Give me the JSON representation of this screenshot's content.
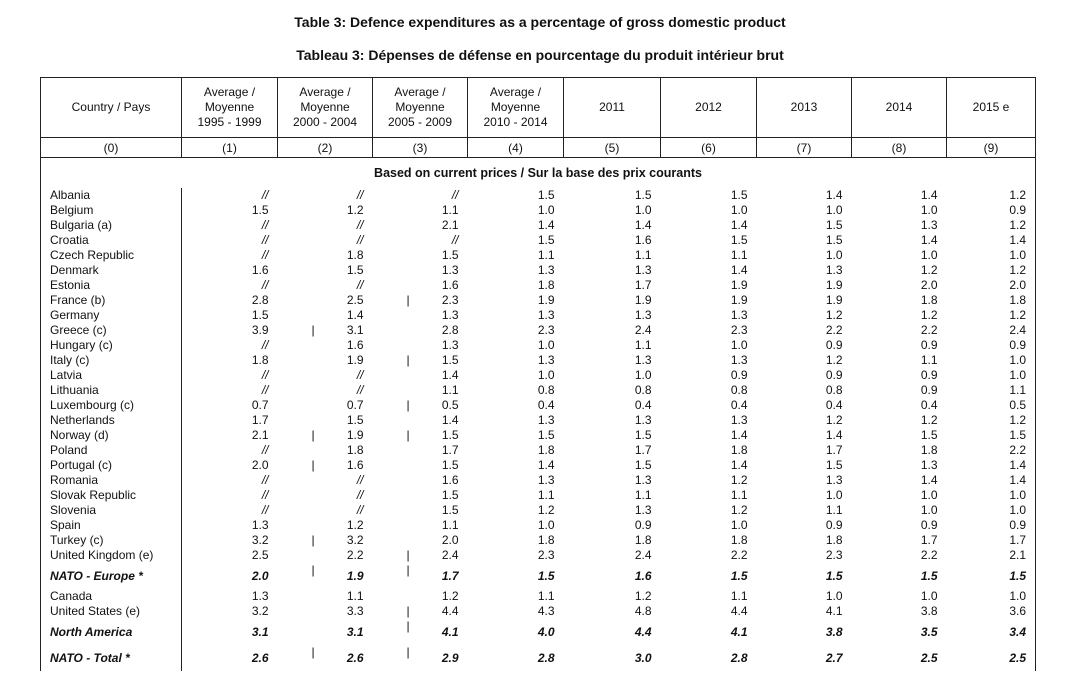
{
  "titles": {
    "en": "Table 3: Defence expenditures as a percentage of gross domestic product",
    "fr": "Tableau 3: Dépenses de défense en pourcentage du produit intérieur brut"
  },
  "columns": [
    {
      "lines": [
        "Country  /  Pays"
      ],
      "index": "(0)"
    },
    {
      "lines": [
        "Average  /",
        "Moyenne",
        "1995 - 1999"
      ],
      "index": "(1)"
    },
    {
      "lines": [
        "Average  /",
        "Moyenne",
        "2000 - 2004"
      ],
      "index": "(2)"
    },
    {
      "lines": [
        "Average  /",
        "Moyenne",
        "2005 - 2009"
      ],
      "index": "(3)"
    },
    {
      "lines": [
        "Average  /",
        "Moyenne",
        "2010 - 2014"
      ],
      "index": "(4)"
    },
    {
      "lines": [
        "2011"
      ],
      "index": "(5)"
    },
    {
      "lines": [
        "2012"
      ],
      "index": "(6)"
    },
    {
      "lines": [
        "2013"
      ],
      "index": "(7)"
    },
    {
      "lines": [
        "2014"
      ],
      "index": "(8)"
    },
    {
      "lines": [
        "2015 e"
      ],
      "index": "(9)"
    }
  ],
  "section_label": "Based on current prices   /   Sur  la base des prix courants",
  "break_marker": "|",
  "rows": [
    {
      "country": "Albania",
      "values": [
        "//",
        "//",
        "//",
        "1.5",
        "1.5",
        "1.5",
        "1.4",
        "1.4",
        "1.2"
      ],
      "breaks": [
        false,
        false
      ]
    },
    {
      "country": "Belgium",
      "values": [
        "1.5",
        "1.2",
        "1.1",
        "1.0",
        "1.0",
        "1.0",
        "1.0",
        "1.0",
        "0.9"
      ],
      "breaks": [
        false,
        false
      ]
    },
    {
      "country": "Bulgaria (a)",
      "values": [
        "//",
        "//",
        "2.1",
        "1.4",
        "1.4",
        "1.4",
        "1.5",
        "1.3",
        "1.2"
      ],
      "breaks": [
        false,
        false
      ]
    },
    {
      "country": "Croatia",
      "values": [
        "//",
        "//",
        "//",
        "1.5",
        "1.6",
        "1.5",
        "1.5",
        "1.4",
        "1.4"
      ],
      "breaks": [
        false,
        false
      ]
    },
    {
      "country": "Czech Republic",
      "values": [
        "//",
        "1.8",
        "1.5",
        "1.1",
        "1.1",
        "1.1",
        "1.0",
        "1.0",
        "1.0"
      ],
      "breaks": [
        false,
        false
      ]
    },
    {
      "country": "Denmark",
      "values": [
        "1.6",
        "1.5",
        "1.3",
        "1.3",
        "1.3",
        "1.4",
        "1.3",
        "1.2",
        "1.2"
      ],
      "breaks": [
        false,
        false
      ]
    },
    {
      "country": "Estonia",
      "values": [
        "//",
        "//",
        "1.6",
        "1.8",
        "1.7",
        "1.9",
        "1.9",
        "2.0",
        "2.0"
      ],
      "breaks": [
        false,
        false
      ]
    },
    {
      "country": "France (b)",
      "values": [
        "2.8",
        "2.5",
        "2.3",
        "1.9",
        "1.9",
        "1.9",
        "1.9",
        "1.8",
        "1.8"
      ],
      "breaks": [
        false,
        true
      ]
    },
    {
      "country": "Germany",
      "values": [
        "1.5",
        "1.4",
        "1.3",
        "1.3",
        "1.3",
        "1.3",
        "1.2",
        "1.2",
        "1.2"
      ],
      "breaks": [
        false,
        false
      ]
    },
    {
      "country": "Greece (c)",
      "values": [
        "3.9",
        "3.1",
        "2.8",
        "2.3",
        "2.4",
        "2.3",
        "2.2",
        "2.2",
        "2.4"
      ],
      "breaks": [
        true,
        false
      ]
    },
    {
      "country": "Hungary (c)",
      "values": [
        "//",
        "1.6",
        "1.3",
        "1.0",
        "1.1",
        "1.0",
        "0.9",
        "0.9",
        "0.9"
      ],
      "breaks": [
        false,
        false
      ]
    },
    {
      "country": "Italy (c)",
      "values": [
        "1.8",
        "1.9",
        "1.5",
        "1.3",
        "1.3",
        "1.3",
        "1.2",
        "1.1",
        "1.0"
      ],
      "breaks": [
        false,
        true
      ]
    },
    {
      "country": "Latvia",
      "values": [
        "//",
        "//",
        "1.4",
        "1.0",
        "1.0",
        "0.9",
        "0.9",
        "0.9",
        "1.0"
      ],
      "breaks": [
        false,
        false
      ]
    },
    {
      "country": "Lithuania",
      "values": [
        "//",
        "//",
        "1.1",
        "0.8",
        "0.8",
        "0.8",
        "0.8",
        "0.9",
        "1.1"
      ],
      "breaks": [
        false,
        false
      ]
    },
    {
      "country": "Luxembourg (c)",
      "values": [
        "0.7",
        "0.7",
        "0.5",
        "0.4",
        "0.4",
        "0.4",
        "0.4",
        "0.4",
        "0.5"
      ],
      "breaks": [
        false,
        true
      ]
    },
    {
      "country": "Netherlands",
      "values": [
        "1.7",
        "1.5",
        "1.4",
        "1.3",
        "1.3",
        "1.3",
        "1.2",
        "1.2",
        "1.2"
      ],
      "breaks": [
        false,
        false
      ]
    },
    {
      "country": "Norway (d)",
      "values": [
        "2.1",
        "1.9",
        "1.5",
        "1.5",
        "1.5",
        "1.4",
        "1.4",
        "1.5",
        "1.5"
      ],
      "breaks": [
        true,
        true
      ]
    },
    {
      "country": "Poland",
      "values": [
        "//",
        "1.8",
        "1.7",
        "1.8",
        "1.7",
        "1.8",
        "1.7",
        "1.8",
        "2.2"
      ],
      "breaks": [
        false,
        false
      ]
    },
    {
      "country": "Portugal (c)",
      "values": [
        "2.0",
        "1.6",
        "1.5",
        "1.4",
        "1.5",
        "1.4",
        "1.5",
        "1.3",
        "1.4"
      ],
      "breaks": [
        true,
        false
      ]
    },
    {
      "country": "Romania",
      "values": [
        "//",
        "//",
        "1.6",
        "1.3",
        "1.3",
        "1.2",
        "1.3",
        "1.4",
        "1.4"
      ],
      "breaks": [
        false,
        false
      ]
    },
    {
      "country": "Slovak Republic",
      "values": [
        "//",
        "//",
        "1.5",
        "1.1",
        "1.1",
        "1.1",
        "1.0",
        "1.0",
        "1.0"
      ],
      "breaks": [
        false,
        false
      ]
    },
    {
      "country": "Slovenia",
      "values": [
        "//",
        "//",
        "1.5",
        "1.2",
        "1.3",
        "1.2",
        "1.1",
        "1.0",
        "1.0"
      ],
      "breaks": [
        false,
        false
      ]
    },
    {
      "country": "Spain",
      "values": [
        "1.3",
        "1.2",
        "1.1",
        "1.0",
        "0.9",
        "1.0",
        "0.9",
        "0.9",
        "0.9"
      ],
      "breaks": [
        false,
        false
      ]
    },
    {
      "country": "Turkey (c)",
      "values": [
        "3.2",
        "3.2",
        "2.0",
        "1.8",
        "1.8",
        "1.8",
        "1.8",
        "1.7",
        "1.7"
      ],
      "breaks": [
        true,
        false
      ]
    },
    {
      "country": "United Kingdom (e)",
      "values": [
        "2.5",
        "2.2",
        "2.4",
        "2.3",
        "2.4",
        "2.2",
        "2.3",
        "2.2",
        "2.1"
      ],
      "breaks": [
        false,
        true
      ]
    },
    {
      "country": "NATO - Europe *",
      "values": [
        "2.0",
        "1.9",
        "1.7",
        "1.5",
        "1.6",
        "1.5",
        "1.5",
        "1.5",
        "1.5"
      ],
      "breaks": [
        true,
        true
      ],
      "summary": true
    },
    {
      "country": "Canada",
      "values": [
        "1.3",
        "1.1",
        "1.2",
        "1.1",
        "1.2",
        "1.1",
        "1.0",
        "1.0",
        "1.0"
      ],
      "breaks": [
        false,
        false
      ]
    },
    {
      "country": "United States (e)",
      "values": [
        "3.2",
        "3.3",
        "4.4",
        "4.3",
        "4.8",
        "4.4",
        "4.1",
        "3.8",
        "3.6"
      ],
      "breaks": [
        false,
        true
      ]
    },
    {
      "country": "North America",
      "values": [
        "3.1",
        "3.1",
        "4.1",
        "4.0",
        "4.4",
        "4.1",
        "3.8",
        "3.5",
        "3.4"
      ],
      "breaks": [
        false,
        true
      ],
      "summary": true
    },
    {
      "country": "NATO - Total *",
      "values": [
        "2.6",
        "2.6",
        "2.9",
        "2.8",
        "3.0",
        "2.8",
        "2.7",
        "2.5",
        "2.5"
      ],
      "breaks": [
        true,
        true
      ],
      "summary": true
    }
  ]
}
